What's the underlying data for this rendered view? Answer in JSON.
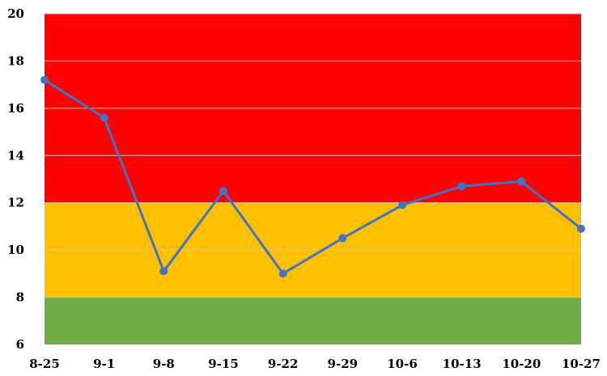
{
  "chart_data": {
    "type": "line",
    "categories": [
      "8-25",
      "9-1",
      "9-8",
      "9-15",
      "9-22",
      "9-29",
      "10-6",
      "10-13",
      "10-20",
      "10-27"
    ],
    "series": [
      {
        "values": [
          17.2,
          15.6,
          9.1,
          12.5,
          9.0,
          10.5,
          11.9,
          12.7,
          12.9,
          10.9
        ]
      }
    ],
    "ylim": [
      6,
      20
    ],
    "yticks": [
      6,
      8,
      10,
      12,
      14,
      16,
      18,
      20
    ],
    "bands": [
      {
        "from": 6,
        "to": 8,
        "color": "#70ad47"
      },
      {
        "from": 8,
        "to": 12,
        "color": "#ffc000"
      },
      {
        "from": 12,
        "to": 20,
        "color": "#ff0000"
      }
    ],
    "line_color": "#4472c4",
    "grid": true
  }
}
